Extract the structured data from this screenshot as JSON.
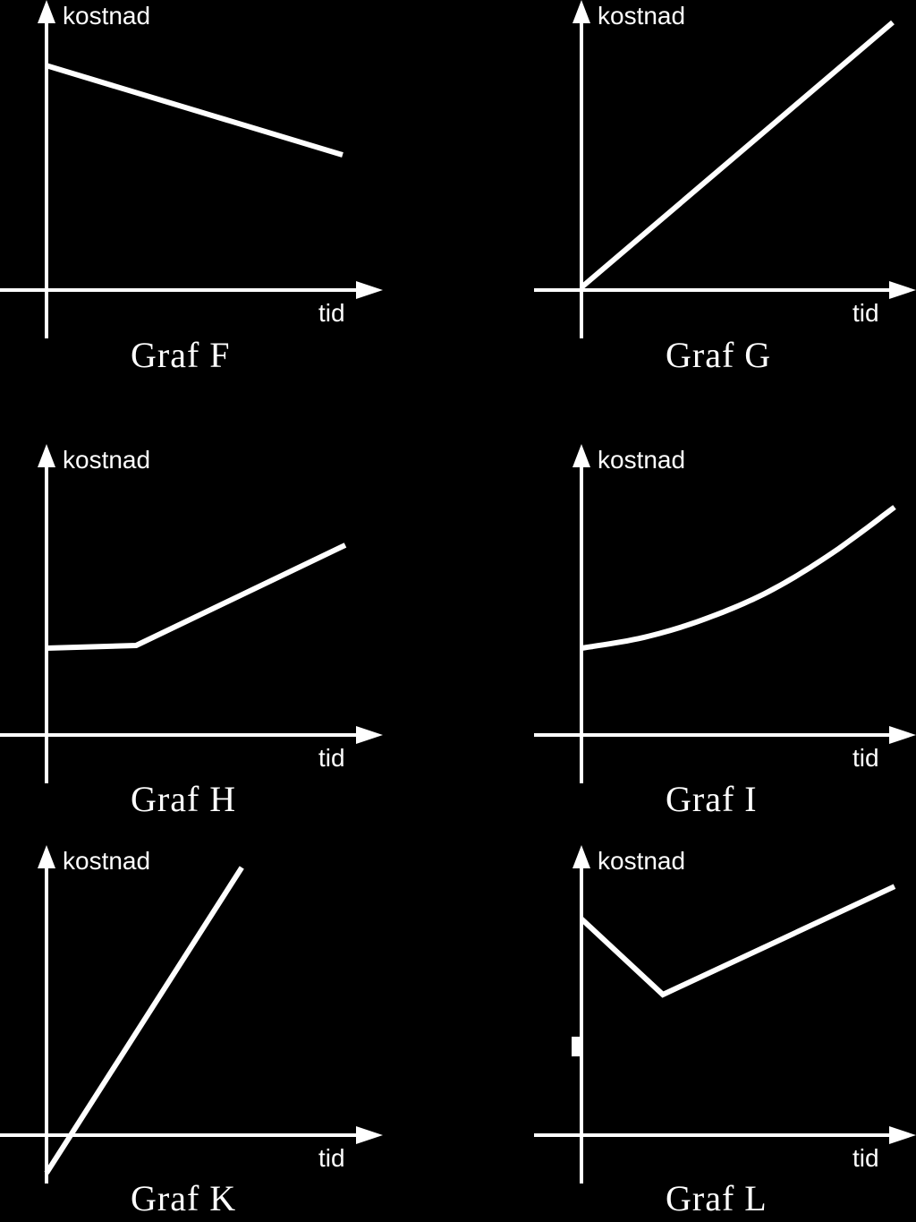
{
  "colors": {
    "background": "#000000",
    "foreground": "#ffffff"
  },
  "chart_data": [
    {
      "type": "line",
      "caption": "Graf F",
      "ylabel": "kostnad",
      "xlabel": "tid",
      "xlim": [
        0,
        10
      ],
      "ylim": [
        0,
        10
      ],
      "series": [
        {
          "x": [
            0,
            10
          ],
          "y": [
            8.3,
            5.0
          ]
        }
      ]
    },
    {
      "type": "line",
      "caption": "Graf G",
      "ylabel": "kostnad",
      "xlabel": "tid",
      "xlim": [
        0,
        10
      ],
      "ylim": [
        0,
        10
      ],
      "series": [
        {
          "x": [
            0,
            10
          ],
          "y": [
            0.1,
            9.9
          ]
        }
      ]
    },
    {
      "type": "line",
      "caption": "Graf H",
      "ylabel": "kostnad",
      "xlabel": "tid",
      "xlim": [
        0,
        10
      ],
      "ylim": [
        0,
        10
      ],
      "series": [
        {
          "x": [
            0,
            3.0,
            10
          ],
          "y": [
            3.2,
            3.3,
            7.0
          ]
        }
      ]
    },
    {
      "type": "line",
      "caption": "Graf I",
      "ylabel": "kostnad",
      "xlabel": "tid",
      "xlim": [
        0,
        10
      ],
      "ylim": [
        0,
        10
      ],
      "series": [
        {
          "x": [
            0,
            2,
            4,
            6,
            8,
            10
          ],
          "y": [
            3.2,
            3.6,
            4.3,
            5.3,
            6.7,
            8.4
          ]
        }
      ]
    },
    {
      "type": "line",
      "caption": "Graf K",
      "ylabel": "kostnad",
      "xlabel": "tid",
      "xlim": [
        0,
        10
      ],
      "ylim": [
        -1.5,
        10
      ],
      "series": [
        {
          "x": [
            0,
            7.4
          ],
          "y": [
            -1.4,
            9.9
          ]
        }
      ]
    },
    {
      "type": "line",
      "caption": "Graf L",
      "ylabel": "kostnad",
      "xlabel": "tid",
      "xlim": [
        0,
        10
      ],
      "ylim": [
        0,
        10
      ],
      "series": [
        {
          "x": [
            0,
            2.6,
            10
          ],
          "y": [
            8.0,
            5.2,
            9.2
          ]
        }
      ]
    }
  ]
}
